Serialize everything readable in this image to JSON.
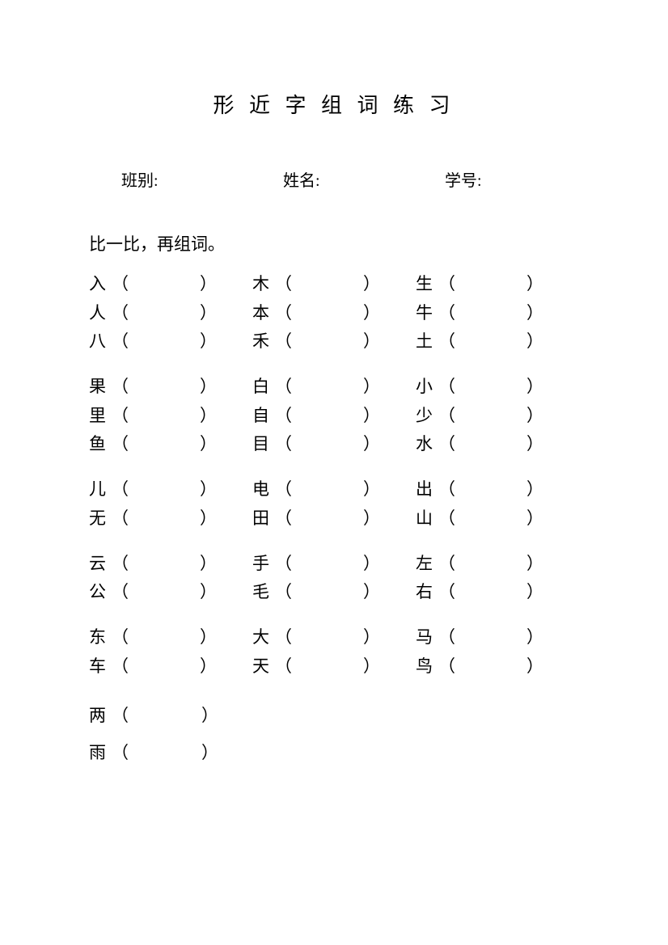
{
  "title": "形 近 字 组 词 练 习",
  "info": {
    "class_label": "班别:",
    "name_label": "姓名:",
    "id_label": "学号:"
  },
  "instruction": "比一比，再组词。",
  "paren_open": "（",
  "paren_close": "）",
  "groups": [
    {
      "rows": [
        [
          "入",
          "木",
          "生"
        ],
        [
          "人",
          "本",
          "牛"
        ],
        [
          "八",
          "禾",
          "土"
        ]
      ]
    },
    {
      "rows": [
        [
          "果",
          "白",
          "小"
        ],
        [
          "里",
          "自",
          "少"
        ],
        [
          "鱼",
          "目",
          "水"
        ]
      ]
    },
    {
      "rows": [
        [
          "儿",
          "电",
          "出"
        ],
        [
          "无",
          "田",
          "山"
        ]
      ]
    },
    {
      "rows": [
        [
          "云",
          "手",
          "左"
        ],
        [
          "公",
          "毛",
          "右"
        ]
      ]
    },
    {
      "rows": [
        [
          "东",
          "大",
          "马"
        ],
        [
          "车",
          "天",
          "鸟"
        ]
      ]
    }
  ],
  "single_group": {
    "rows": [
      [
        "两"
      ],
      [
        "雨"
      ]
    ]
  }
}
